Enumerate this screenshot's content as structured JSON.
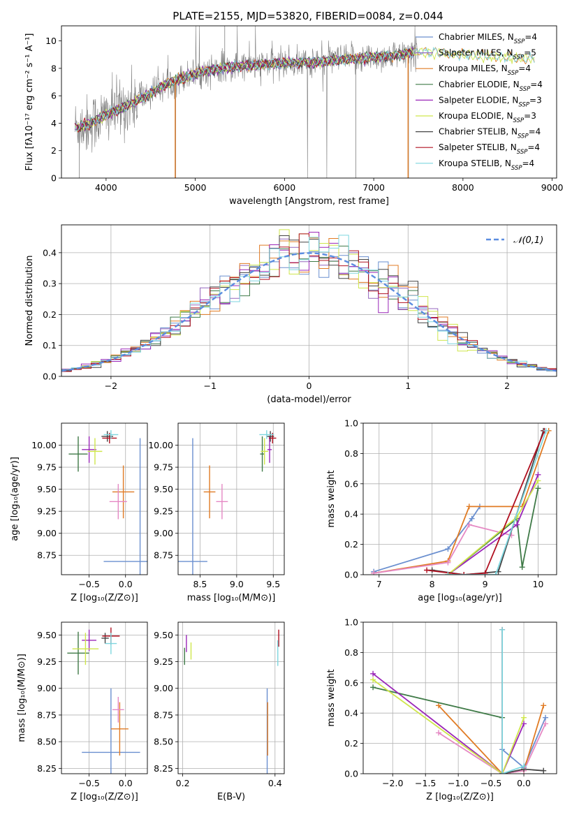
{
  "figure": {
    "title": "PLATE=2155, MJD=53820, FIBERID=0084, z=0.044"
  },
  "colors": {
    "Chabrier MILES": "#6a8fcf",
    "Salpeter MILES": "#9467bd",
    "Kroupa MILES": "#e07b24",
    "Chabrier ELODIE": "#3f7a47",
    "Salpeter ELODIE": "#9a26b8",
    "Kroupa ELODIE": "#cfe64c",
    "Chabrier STELIB": "#444444",
    "Salpeter STELIB": "#b01020",
    "Kroupa STELIB": "#7ed6df",
    "data": "#808080",
    "normal": "#5b8de0",
    "pink": "#e589c4"
  },
  "chart_data": [
    {
      "id": "spectrum",
      "type": "line",
      "title": "PLATE=2155, MJD=53820, FIBERID=0084, z=0.044",
      "xlabel": "wavelength [Angstrom, rest frame]",
      "ylabel": "Flux [fλ10⁻¹⁷ erg cm⁻² s⁻¹ A⁻¹]",
      "xlim": [
        3500,
        9050
      ],
      "ylim": [
        0,
        11.1
      ],
      "xticks": [
        4000,
        5000,
        6000,
        7000,
        8000,
        9000
      ],
      "yticks": [
        0,
        2,
        4,
        6,
        8,
        10
      ],
      "legend_position": "top-right",
      "legend": [
        {
          "name": "Chabrier MILES",
          "nssp": "4"
        },
        {
          "name": "Salpeter MILES",
          "nssp": "5"
        },
        {
          "name": "Kroupa MILES",
          "nssp": "4"
        },
        {
          "name": "Chabrier ELODIE",
          "nssp": "4"
        },
        {
          "name": "Salpeter ELODIE",
          "nssp": "3"
        },
        {
          "name": "Kroupa ELODIE",
          "nssp": "3"
        },
        {
          "name": "Chabrier STELIB",
          "nssp": "4"
        },
        {
          "name": "Salpeter STELIB",
          "nssp": "4"
        },
        {
          "name": "Kroupa STELIB",
          "nssp": "4"
        }
      ],
      "continuum_x": [
        3650,
        3800,
        4000,
        4200,
        4400,
        4600,
        4800,
        5000,
        5200,
        5400,
        5600,
        5800,
        6000,
        6200,
        6400,
        6600,
        6800,
        7000,
        7200,
        7400,
        7500
      ],
      "continuum_y": [
        3.7,
        3.9,
        4.6,
        5.2,
        5.8,
        6.6,
        7.2,
        7.6,
        7.9,
        8.1,
        8.2,
        8.3,
        8.4,
        8.4,
        8.5,
        8.6,
        8.7,
        8.8,
        8.9,
        9.1,
        9.2
      ],
      "model_x_range": [
        3650,
        8800
      ]
    },
    {
      "id": "residuals",
      "type": "line",
      "xlabel": "(data-model)/error",
      "ylabel": "Normed distribution",
      "xlim": [
        -2.5,
        2.5
      ],
      "ylim": [
        0,
        0.49
      ],
      "xticks": [
        -2,
        -1,
        0,
        1,
        2
      ],
      "yticks": [
        0.0,
        0.1,
        0.2,
        0.3,
        0.4
      ],
      "legend_position": "top-right",
      "normal_label": "𝒩(0,1)",
      "bin_width": 0.1
    },
    {
      "id": "age-Z",
      "type": "scatter",
      "xlabel": "Z [log₁₀(Z/Z⊙)]",
      "ylabel": "age  [log₁₀(age/yr)]",
      "xlim": [
        -0.88,
        0.3
      ],
      "ylim": [
        8.53,
        10.25
      ],
      "xticks": [
        -0.5,
        0.0
      ],
      "yticks": [
        8.75,
        9.0,
        9.25,
        9.5,
        9.75,
        10.0
      ],
      "points": [
        {
          "color": "#6a8fcf",
          "x": 0.2,
          "y": 8.68,
          "xerr": 0.5,
          "yerr": 1.4
        },
        {
          "color": "#e07b24",
          "x": -0.03,
          "y": 9.47,
          "xerr": 0.15,
          "yerr": 0.3
        },
        {
          "color": "#e589c4",
          "x": -0.1,
          "y": 9.36,
          "xerr": 0.12,
          "yerr": 0.2
        },
        {
          "color": "#3f7a47",
          "x": -0.65,
          "y": 9.9,
          "xerr": 0.13,
          "yerr": 0.2
        },
        {
          "color": "#9a26b8",
          "x": -0.5,
          "y": 9.95,
          "xerr": 0.1,
          "yerr": 0.15
        },
        {
          "color": "#cfe64c",
          "x": -0.42,
          "y": 9.93,
          "xerr": 0.1,
          "yerr": 0.15
        },
        {
          "color": "#444444",
          "x": -0.25,
          "y": 10.1,
          "xerr": 0.08,
          "yerr": 0.06
        },
        {
          "color": "#b01020",
          "x": -0.22,
          "y": 10.08,
          "xerr": 0.1,
          "yerr": 0.06
        },
        {
          "color": "#7ed6df",
          "x": -0.2,
          "y": 10.12,
          "xerr": 0.1,
          "yerr": 0.05
        }
      ]
    },
    {
      "id": "age-mass",
      "type": "scatter",
      "xlabel": "mass [log₁₀(M/M⊙)]",
      "xlim": [
        8.2,
        9.65
      ],
      "ylim": [
        8.53,
        10.25
      ],
      "xticks": [
        8.5,
        9.0,
        9.5
      ],
      "yticks": [
        8.75,
        9.0,
        9.25,
        9.5,
        9.75,
        10.0
      ],
      "points": [
        {
          "color": "#6a8fcf",
          "x": 8.4,
          "y": 8.68,
          "xerr": 0.2,
          "yerr": 1.4
        },
        {
          "color": "#e07b24",
          "x": 8.63,
          "y": 9.47,
          "xerr": 0.08,
          "yerr": 0.3
        },
        {
          "color": "#e589c4",
          "x": 8.8,
          "y": 9.36,
          "xerr": 0.08,
          "yerr": 0.2
        },
        {
          "color": "#3f7a47",
          "x": 9.35,
          "y": 9.9,
          "xerr": 0.03,
          "yerr": 0.2
        },
        {
          "color": "#9a26b8",
          "x": 9.45,
          "y": 9.95,
          "xerr": 0.03,
          "yerr": 0.15
        },
        {
          "color": "#cfe64c",
          "x": 9.38,
          "y": 9.93,
          "xerr": 0.05,
          "yerr": 0.15
        },
        {
          "color": "#444444",
          "x": 9.46,
          "y": 10.1,
          "xerr": 0.05,
          "yerr": 0.06
        },
        {
          "color": "#b01020",
          "x": 9.49,
          "y": 10.08,
          "xerr": 0.05,
          "yerr": 0.06
        },
        {
          "color": "#7ed6df",
          "x": 9.41,
          "y": 10.12,
          "xerr": 0.1,
          "yerr": 0.05
        }
      ]
    },
    {
      "id": "mass-weight-age",
      "type": "line",
      "xlabel": "age  [log₁₀(age/yr)]",
      "ylabel": "mass weight",
      "xlim": [
        6.7,
        10.35
      ],
      "ylim": [
        0,
        1.0
      ],
      "xticks": [
        7,
        8,
        9,
        10
      ],
      "yticks": [
        0.0,
        0.2,
        0.4,
        0.6,
        0.8,
        1.0
      ],
      "series": [
        {
          "color": "#6a8fcf",
          "x": [
            6.9,
            8.3,
            8.75,
            8.9
          ],
          "y": [
            0.02,
            0.17,
            0.37,
            0.45
          ]
        },
        {
          "color": "#e07b24",
          "x": [
            6.9,
            8.3,
            8.7,
            9.7,
            10.2
          ],
          "y": [
            0.01,
            0.09,
            0.45,
            0.45,
            0.95
          ]
        },
        {
          "color": "#e589c4",
          "x": [
            6.9,
            8.3,
            8.7,
            9.5
          ],
          "y": [
            0.01,
            0.08,
            0.33,
            0.26
          ]
        },
        {
          "color": "#3f7a47",
          "x": [
            8.3,
            9.6,
            9.7,
            10.0
          ],
          "y": [
            0.0,
            0.37,
            0.05,
            0.57
          ]
        },
        {
          "color": "#9a26b8",
          "x": [
            8.3,
            9.6,
            10.0
          ],
          "y": [
            0.0,
            0.33,
            0.66
          ]
        },
        {
          "color": "#cfe64c",
          "x": [
            8.3,
            9.6,
            10.0
          ],
          "y": [
            0.0,
            0.38,
            0.62
          ]
        },
        {
          "color": "#444444",
          "x": [
            8.0,
            8.6,
            9.25,
            10.1
          ],
          "y": [
            0.03,
            0.0,
            0.02,
            0.95
          ]
        },
        {
          "color": "#b01020",
          "x": [
            7.9,
            8.6,
            9.0,
            10.12
          ],
          "y": [
            0.03,
            0.0,
            0.01,
            0.95
          ]
        },
        {
          "color": "#7ed6df",
          "x": [
            8.3,
            9.2,
            10.15
          ],
          "y": [
            0.0,
            0.0,
            0.95
          ]
        }
      ]
    },
    {
      "id": "mass-Z",
      "type": "scatter",
      "xlabel": "Z [log₁₀(Z/Z⊙)]",
      "ylabel": "mass [log₁₀(M/M⊙)]",
      "xlim": [
        -0.88,
        0.3
      ],
      "ylim": [
        8.2,
        9.62
      ],
      "xticks": [
        -0.5,
        0.0
      ],
      "yticks": [
        8.25,
        8.5,
        8.75,
        9.0,
        9.25,
        9.5
      ],
      "points": [
        {
          "color": "#6a8fcf",
          "x": -0.2,
          "y": 8.4,
          "xerr": 0.4,
          "yerr": 0.6
        },
        {
          "color": "#e07b24",
          "x": -0.08,
          "y": 8.62,
          "xerr": 0.12,
          "yerr": 0.25
        },
        {
          "color": "#e589c4",
          "x": -0.1,
          "y": 8.8,
          "xerr": 0.08,
          "yerr": 0.12
        },
        {
          "color": "#3f7a47",
          "x": -0.65,
          "y": 9.33,
          "xerr": 0.15,
          "yerr": 0.2
        },
        {
          "color": "#9a26b8",
          "x": -0.5,
          "y": 9.45,
          "xerr": 0.1,
          "yerr": 0.1
        },
        {
          "color": "#cfe64c",
          "x": -0.55,
          "y": 9.37,
          "xerr": 0.18,
          "yerr": 0.15
        },
        {
          "color": "#444444",
          "x": -0.28,
          "y": 9.47,
          "xerr": 0.05,
          "yerr": 0.05
        },
        {
          "color": "#b01020",
          "x": -0.2,
          "y": 9.49,
          "xerr": 0.12,
          "yerr": 0.08
        },
        {
          "color": "#7ed6df",
          "x": -0.2,
          "y": 9.42,
          "xerr": 0.08,
          "yerr": 0.1
        }
      ]
    },
    {
      "id": "mass-EBV",
      "type": "scatter",
      "xlabel": "E(B-V)",
      "xlim": [
        0.19,
        0.42
      ],
      "ylim": [
        8.2,
        9.62
      ],
      "xticks": [
        0.2,
        0.4
      ],
      "yticks": [
        8.25,
        8.5,
        8.75,
        9.0,
        9.25,
        9.5
      ],
      "points": [
        {
          "color": "#6a8fcf",
          "x": 0.383,
          "y": 8.4,
          "xerr": 0.0,
          "yerr": 0.6
        },
        {
          "color": "#e07b24",
          "x": 0.384,
          "y": 8.62,
          "xerr": 0.0,
          "yerr": 0.25
        },
        {
          "color": "#9a26b8",
          "x": 0.208,
          "y": 9.42,
          "xerr": 0.0,
          "yerr": 0.08
        },
        {
          "color": "#3f7a47",
          "x": 0.204,
          "y": 9.3,
          "xerr": 0.0,
          "yerr": 0.08
        },
        {
          "color": "#cfe64c",
          "x": 0.218,
          "y": 9.35,
          "xerr": 0.0,
          "yerr": 0.08
        },
        {
          "color": "#b01020",
          "x": 0.408,
          "y": 9.47,
          "xerr": 0.0,
          "yerr": 0.08
        },
        {
          "color": "#7ed6df",
          "x": 0.406,
          "y": 9.33,
          "xerr": 0.0,
          "yerr": 0.12
        }
      ]
    },
    {
      "id": "mass-weight-Z",
      "type": "line",
      "xlabel": "Z [log₁₀(Z/Z⊙)]",
      "ylabel": "mass weight",
      "xlim": [
        -2.45,
        0.5
      ],
      "ylim": [
        0,
        1.0
      ],
      "xticks": [
        -2.0,
        -1.5,
        -1.0,
        -0.5,
        0.0
      ],
      "yticks": [
        0.0,
        0.2,
        0.4,
        0.6,
        0.8,
        1.0
      ],
      "series": [
        {
          "color": "#6a8fcf",
          "x": [
            -0.33,
            0.0,
            0.33
          ],
          "y": [
            0.16,
            0.04,
            0.37
          ]
        },
        {
          "color": "#e07b24",
          "x": [
            -1.3,
            -0.33,
            0.0,
            0.3
          ],
          "y": [
            0.45,
            0.0,
            0.02,
            0.45
          ]
        },
        {
          "color": "#e589c4",
          "x": [
            -1.3,
            -0.33,
            0.0,
            0.33
          ],
          "y": [
            0.27,
            0.0,
            0.02,
            0.33
          ]
        },
        {
          "color": "#3f7a47",
          "x": [
            -2.3,
            -0.33
          ],
          "y": [
            0.57,
            0.37
          ]
        },
        {
          "color": "#9a26b8",
          "x": [
            -2.3,
            -0.33,
            0.0
          ],
          "y": [
            0.66,
            0.0,
            0.33
          ]
        },
        {
          "color": "#cfe64c",
          "x": [
            -2.3,
            -0.33,
            0.0
          ],
          "y": [
            0.62,
            0.0,
            0.37
          ]
        },
        {
          "color": "#444444",
          "x": [
            -0.33,
            0.0,
            0.3
          ],
          "y": [
            0.0,
            0.03,
            0.02
          ]
        },
        {
          "color": "#b01020",
          "x": [
            -0.33,
            -0.33
          ],
          "y": [
            0.0,
            0.95
          ]
        },
        {
          "color": "#7ed6df",
          "x": [
            -0.33,
            -0.33,
            0.0
          ],
          "y": [
            0.95,
            0.0,
            0.05
          ]
        }
      ]
    }
  ]
}
